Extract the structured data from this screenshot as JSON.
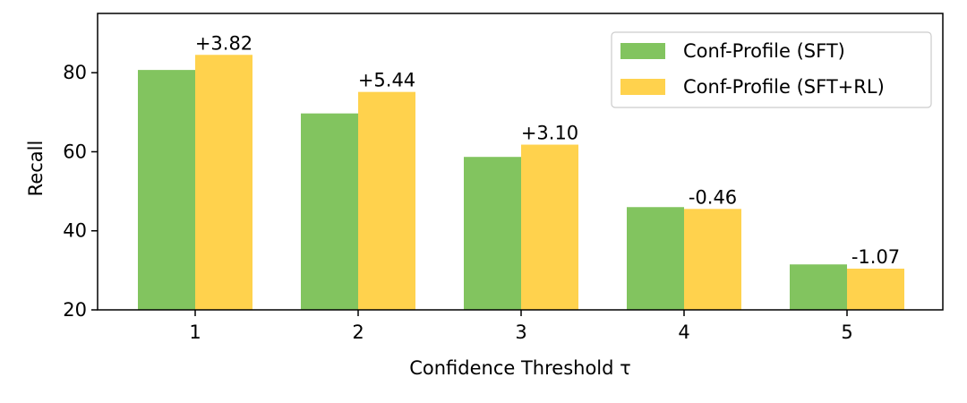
{
  "chart_data": {
    "type": "bar",
    "categories": [
      "1",
      "2",
      "3",
      "4",
      "5"
    ],
    "series": [
      {
        "name": "Conf-Profile (SFT)",
        "values": [
          80.7,
          69.7,
          58.7,
          46.0,
          31.5
        ],
        "color": "#82c45f"
      },
      {
        "name": "Conf-Profile (SFT+RL)",
        "values": [
          84.52,
          75.14,
          61.8,
          45.54,
          30.43
        ],
        "color": "#ffd24d"
      }
    ],
    "annotations": [
      "+3.82",
      "+5.44",
      "+3.10",
      "-0.46",
      "-1.07"
    ],
    "xlabel": "Confidence Threshold τ",
    "ylabel": "Recall",
    "ylim": [
      20,
      95
    ],
    "yticks": [
      20,
      40,
      60,
      80
    ],
    "legend_position": "top-right",
    "grid": false
  }
}
